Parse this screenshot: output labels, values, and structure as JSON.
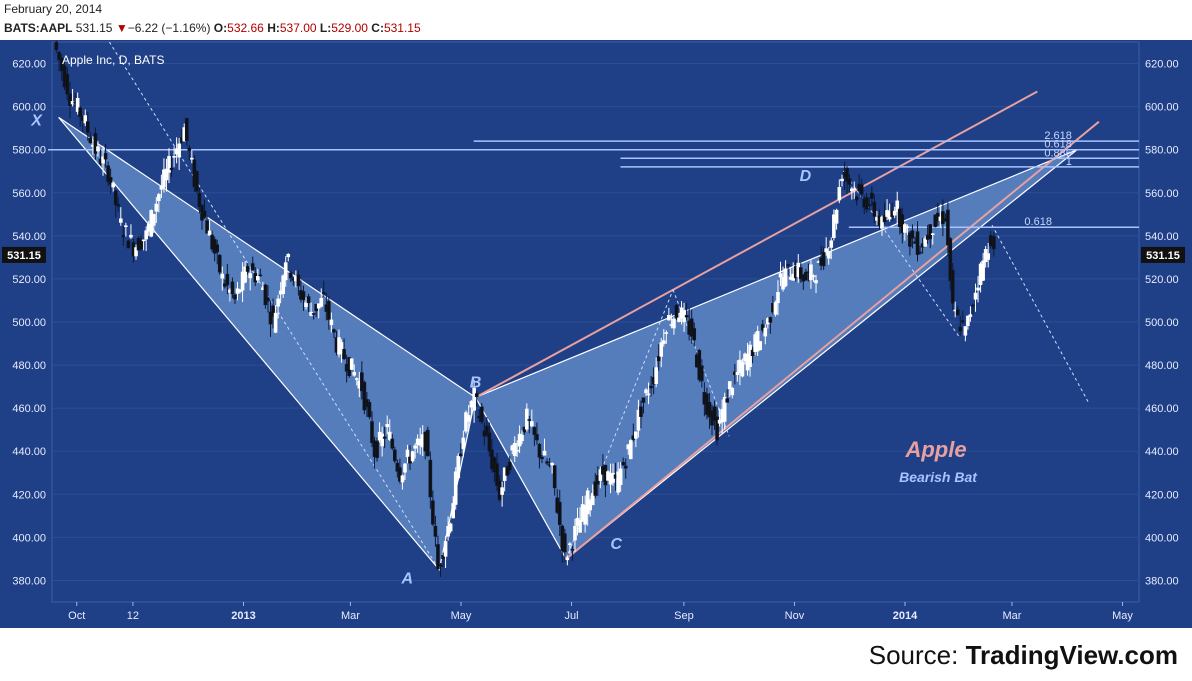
{
  "header": {
    "date": "February 20, 2014",
    "symbol": "BATS:AAPL",
    "last": "531.15",
    "change": "−6.22 (−1.16%)",
    "open_label": "O:",
    "open": "532.66",
    "high_label": "H:",
    "high": "537.00",
    "low_label": "L:",
    "low": "529.00",
    "close_label": "C:",
    "close": "531.15"
  },
  "source": {
    "prefix": "Source:",
    "name": "TradingView.com"
  },
  "chart_data": {
    "type": "line",
    "title": "Apple Inc, D, BATS",
    "annotation_title": "Apple",
    "annotation_subtitle": "Bearish Bat",
    "colors": {
      "background": "#1f3f86",
      "pattern_fill": "#5f87c4",
      "upper_line": "#e8a0a0",
      "candle_up": "#ffffff",
      "candle_down": "#111111",
      "fib_lines": "#a9c3ff"
    },
    "ylim": [
      370,
      630
    ],
    "y_ticks": [
      "380.00",
      "400.00",
      "420.00",
      "440.00",
      "460.00",
      "480.00",
      "500.00",
      "520.00",
      "540.00",
      "560.00",
      "580.00",
      "600.00",
      "620.00"
    ],
    "last_price_label": "531.15",
    "x_ticks": [
      "Oct",
      "12",
      "2013",
      "Mar",
      "May",
      "Jul",
      "Sep",
      "Nov",
      "2014",
      "Mar",
      "May"
    ],
    "pattern_points": [
      {
        "label": "X",
        "date": "2012-09-21",
        "value": 595
      },
      {
        "label": "A",
        "date": "2013-04-19",
        "value": 385
      },
      {
        "label": "B",
        "date": "2013-05-09",
        "value": 465
      },
      {
        "label": "C",
        "date": "2013-06-28",
        "value": 390
      },
      {
        "label": "D",
        "date": "2013-11-28",
        "value": 570
      }
    ],
    "fib_levels": [
      {
        "label": "2.618",
        "value": 584
      },
      {
        "label": "0.618",
        "value": 580
      },
      {
        "label": "0.886",
        "value": 576
      },
      {
        "label": "1",
        "value": 572
      },
      {
        "label": "0.618",
        "value": 544
      }
    ],
    "price_path": [
      [
        "2012-09-19",
        630
      ],
      [
        "2012-09-28",
        605
      ],
      [
        "2012-10-05",
        595
      ],
      [
        "2012-10-12",
        580
      ],
      [
        "2012-10-19",
        570
      ],
      [
        "2012-10-26",
        545
      ],
      [
        "2012-11-02",
        535
      ],
      [
        "2012-11-09",
        540
      ],
      [
        "2012-11-16",
        560
      ],
      [
        "2012-11-23",
        575
      ],
      [
        "2012-11-30",
        590
      ],
      [
        "2012-12-07",
        560
      ],
      [
        "2012-12-14",
        540
      ],
      [
        "2012-12-21",
        520
      ],
      [
        "2012-12-28",
        510
      ],
      [
        "2013-01-04",
        525
      ],
      [
        "2013-01-11",
        520
      ],
      [
        "2013-01-18",
        500
      ],
      [
        "2013-01-25",
        530
      ],
      [
        "2013-02-01",
        515
      ],
      [
        "2013-02-08",
        505
      ],
      [
        "2013-02-15",
        510
      ],
      [
        "2013-02-22",
        490
      ],
      [
        "2013-03-01",
        480
      ],
      [
        "2013-03-08",
        470
      ],
      [
        "2013-03-15",
        440
      ],
      [
        "2013-03-22",
        450
      ],
      [
        "2013-03-29",
        430
      ],
      [
        "2013-04-05",
        440
      ],
      [
        "2013-04-12",
        445
      ],
      [
        "2013-04-19",
        385
      ],
      [
        "2013-04-26",
        410
      ],
      [
        "2013-05-03",
        450
      ],
      [
        "2013-05-09",
        465
      ],
      [
        "2013-05-16",
        445
      ],
      [
        "2013-05-23",
        420
      ],
      [
        "2013-05-30",
        440
      ],
      [
        "2013-06-07",
        455
      ],
      [
        "2013-06-14",
        440
      ],
      [
        "2013-06-21",
        430
      ],
      [
        "2013-06-28",
        390
      ],
      [
        "2013-07-05",
        405
      ],
      [
        "2013-07-12",
        420
      ],
      [
        "2013-07-19",
        430
      ],
      [
        "2013-07-26",
        425
      ],
      [
        "2013-08-02",
        440
      ],
      [
        "2013-08-09",
        460
      ],
      [
        "2013-08-16",
        475
      ],
      [
        "2013-08-23",
        500
      ],
      [
        "2013-08-30",
        505
      ],
      [
        "2013-09-06",
        495
      ],
      [
        "2013-09-13",
        465
      ],
      [
        "2013-09-20",
        450
      ],
      [
        "2013-09-27",
        470
      ],
      [
        "2013-10-04",
        480
      ],
      [
        "2013-10-11",
        490
      ],
      [
        "2013-10-18",
        500
      ],
      [
        "2013-10-25",
        520
      ],
      [
        "2013-11-01",
        525
      ],
      [
        "2013-11-08",
        520
      ],
      [
        "2013-11-15",
        525
      ],
      [
        "2013-11-22",
        540
      ],
      [
        "2013-11-28",
        570
      ],
      [
        "2013-12-06",
        560
      ],
      [
        "2013-12-13",
        555
      ],
      [
        "2013-12-20",
        545
      ],
      [
        "2013-12-27",
        555
      ],
      [
        "2014-01-03",
        540
      ],
      [
        "2014-01-10",
        535
      ],
      [
        "2014-01-17",
        545
      ],
      [
        "2014-01-24",
        550
      ],
      [
        "2014-01-28",
        505
      ],
      [
        "2014-02-04",
        495
      ],
      [
        "2014-02-11",
        520
      ],
      [
        "2014-02-18",
        540
      ],
      [
        "2014-02-20",
        531.15
      ]
    ]
  }
}
